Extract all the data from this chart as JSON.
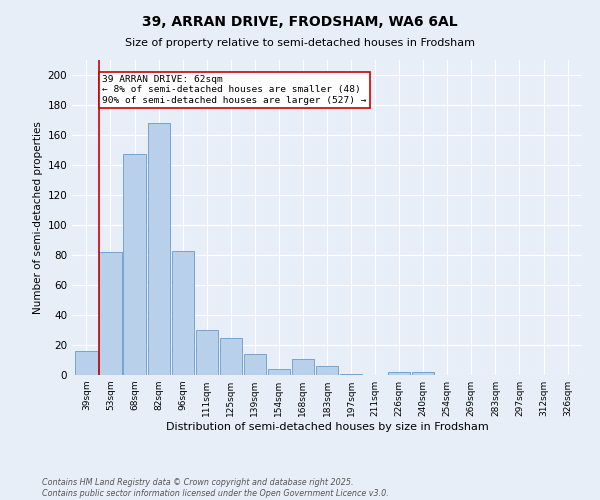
{
  "title1": "39, ARRAN DRIVE, FRODSHAM, WA6 6AL",
  "title2": "Size of property relative to semi-detached houses in Frodsham",
  "xlabel": "Distribution of semi-detached houses by size in Frodsham",
  "ylabel": "Number of semi-detached properties",
  "categories": [
    "39sqm",
    "53sqm",
    "68sqm",
    "82sqm",
    "96sqm",
    "111sqm",
    "125sqm",
    "139sqm",
    "154sqm",
    "168sqm",
    "183sqm",
    "197sqm",
    "211sqm",
    "226sqm",
    "240sqm",
    "254sqm",
    "269sqm",
    "283sqm",
    "297sqm",
    "312sqm",
    "326sqm"
  ],
  "values": [
    16,
    82,
    147,
    168,
    83,
    30,
    25,
    14,
    4,
    11,
    6,
    1,
    0,
    2,
    2,
    0,
    0,
    0,
    0,
    0,
    0
  ],
  "bar_color": "#b8d0ea",
  "bar_edge_color": "#6699cc",
  "annotation_title": "39 ARRAN DRIVE: 62sqm",
  "annotation_line1": "← 8% of semi-detached houses are smaller (48)",
  "annotation_line2": "90% of semi-detached houses are larger (527) →",
  "annotation_box_color": "#ffffff",
  "annotation_box_edge": "#cc0000",
  "line_color": "#cc0000",
  "ylim": [
    0,
    210
  ],
  "yticks": [
    0,
    20,
    40,
    60,
    80,
    100,
    120,
    140,
    160,
    180,
    200
  ],
  "background_color": "#e8eef8",
  "grid_color": "#ffffff",
  "footer": "Contains HM Land Registry data © Crown copyright and database right 2025.\nContains public sector information licensed under the Open Government Licence v3.0."
}
